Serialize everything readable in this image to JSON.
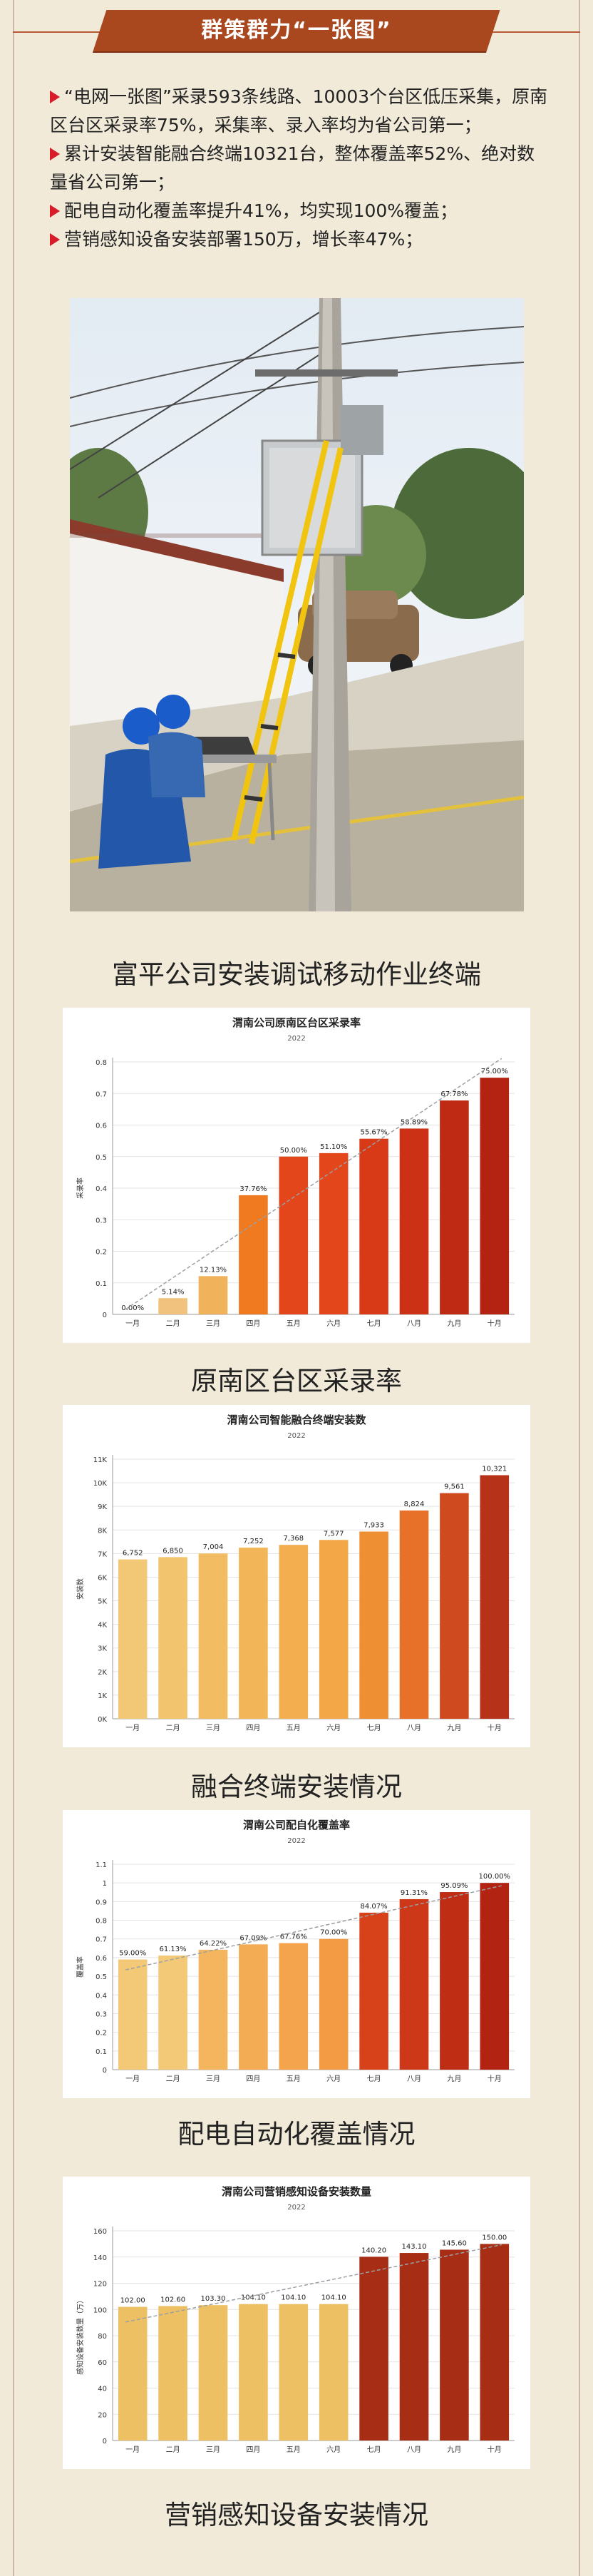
{
  "banner": {
    "title": "群策群力“一张图”"
  },
  "bullets": [
    "“电网一张图”采录593条线路、10003个台区低压采集，原南区台区采录率75%，采集率、录入率均为省公司第一；",
    "累计安装智能融合终端10321台，整体覆盖率52%、绝对数量省公司第一；",
    "配电自动化覆盖率提升41%，均实现100%覆盖；",
    "营销感知设备安装部署150万，增长率47%；"
  ],
  "photo": {
    "caption": "富平公司安装调试移动作业终端"
  },
  "colors": {
    "banner": "#a9471f",
    "bullet": "#d91b2a",
    "background": "#f1ead9"
  },
  "chart_data": [
    {
      "type": "bar",
      "title": "渭南公司原南区台区采录率",
      "subtitle": "2022",
      "ylabel": "采录率",
      "caption": "原南区台区采录率",
      "categories": [
        "一月",
        "二月",
        "三月",
        "四月",
        "五月",
        "六月",
        "七月",
        "八月",
        "九月",
        "十月"
      ],
      "values": [
        0.0,
        0.0514,
        0.1213,
        0.3776,
        0.5,
        0.511,
        0.5567,
        0.5889,
        0.6778,
        0.75
      ],
      "labels": [
        "0.00%",
        "5.14%",
        "12.13%",
        "37.76%",
        "50.00%",
        "51.10%",
        "55.67%",
        "58.89%",
        "67.78%",
        "75.00%"
      ],
      "ylim": [
        0,
        0.8
      ],
      "yticks": [
        0,
        0.1,
        0.2,
        0.3,
        0.4,
        0.5,
        0.6,
        0.7,
        0.8
      ],
      "ytick_labels": [
        "0",
        "0.1",
        "0.2",
        "0.3",
        "0.4",
        "0.5",
        "0.6",
        "0.7",
        "0.8"
      ],
      "colors": [
        "#f1c27d",
        "#f1c27d",
        "#f0b25a",
        "#f07a1f",
        "#e3461a",
        "#e3461a",
        "#d83a18",
        "#cc3116",
        "#bf2a14",
        "#b42212"
      ],
      "trendline": true
    },
    {
      "type": "bar",
      "title": "渭南公司智能融合终端安装数",
      "subtitle": "2022",
      "ylabel": "安装数",
      "caption": "融合终端安装情况",
      "categories": [
        "一月",
        "二月",
        "三月",
        "四月",
        "五月",
        "六月",
        "七月",
        "八月",
        "九月",
        "十月"
      ],
      "values": [
        6752,
        6850,
        7004,
        7252,
        7368,
        7577,
        7933,
        8824,
        9561,
        10321
      ],
      "labels": [
        "6,752",
        "6,850",
        "7,004",
        "7,252",
        "7,368",
        "7,577",
        "7,933",
        "8,824",
        "9,561",
        "10,321"
      ],
      "ylim": [
        0,
        11000
      ],
      "yticks": [
        0,
        1000,
        2000,
        3000,
        4000,
        5000,
        6000,
        7000,
        8000,
        9000,
        10000,
        11000
      ],
      "ytick_labels": [
        "0K",
        "1K",
        "2K",
        "3K",
        "4K",
        "5K",
        "6K",
        "7K",
        "8K",
        "9K",
        "10K",
        "11K"
      ],
      "colors": [
        "#f2c877",
        "#f2c46d",
        "#f2bd62",
        "#f2b659",
        "#f3ae4f",
        "#f3a746",
        "#ef8f34",
        "#e8712a",
        "#cf4a1f",
        "#b63218"
      ],
      "trendline": false
    },
    {
      "type": "bar",
      "title": "渭南公司配自化覆盖率",
      "subtitle": "2022",
      "ylabel": "覆盖率",
      "caption": "配电自动化覆盖情况",
      "categories": [
        "一月",
        "二月",
        "三月",
        "四月",
        "五月",
        "六月",
        "七月",
        "八月",
        "九月",
        "十月"
      ],
      "values": [
        0.59,
        0.6113,
        0.6422,
        0.6709,
        0.6776,
        0.7,
        0.8407,
        0.9131,
        0.9509,
        1.0
      ],
      "labels": [
        "59.00%",
        "61.13%",
        "64.22%",
        "67.09%",
        "67.76%",
        "70.00%",
        "84.07%",
        "91.31%",
        "95.09%",
        "100.00%"
      ],
      "ylim": [
        0,
        1.1
      ],
      "yticks": [
        0,
        0.1,
        0.2,
        0.3,
        0.4,
        0.5,
        0.6,
        0.7,
        0.8,
        0.9,
        1.0,
        1.1
      ],
      "ytick_labels": [
        "0",
        "0.1",
        "0.2",
        "0.3",
        "0.4",
        "0.5",
        "0.6",
        "0.7",
        "0.8",
        "0.9",
        "1",
        "1.1"
      ],
      "colors": [
        "#f3c877",
        "#f3c877",
        "#f4b55e",
        "#f4ac54",
        "#f3a44c",
        "#f39a44",
        "#d8421a",
        "#cc3818",
        "#bf2d14",
        "#b22312"
      ],
      "trendline": true
    },
    {
      "type": "bar",
      "title": "渭南公司营销感知设备安装数量",
      "subtitle": "2022",
      "ylabel": "感知设备安装数量（万）",
      "caption": "营销感知设备安装情况",
      "categories": [
        "一月",
        "二月",
        "三月",
        "四月",
        "五月",
        "六月",
        "七月",
        "八月",
        "九月",
        "十月"
      ],
      "values": [
        102.0,
        102.6,
        103.3,
        104.1,
        104.1,
        104.1,
        140.2,
        143.1,
        145.6,
        150.0
      ],
      "labels": [
        "102.00",
        "102.60",
        "103.30",
        "104.10",
        "104.10",
        "104.10",
        "140.20",
        "143.10",
        "145.60",
        "150.00"
      ],
      "ylim": [
        0,
        160
      ],
      "yticks": [
        0,
        20,
        40,
        60,
        80,
        100,
        120,
        140,
        160
      ],
      "ytick_labels": [
        "0",
        "20",
        "40",
        "60",
        "80",
        "100",
        "120",
        "140",
        "160"
      ],
      "colors": [
        "#ecc063",
        "#ecc063",
        "#ecc063",
        "#ecc063",
        "#ecc063",
        "#ecc063",
        "#a72e14",
        "#a72e14",
        "#a72e14",
        "#a72e14"
      ],
      "trendline": true
    }
  ]
}
